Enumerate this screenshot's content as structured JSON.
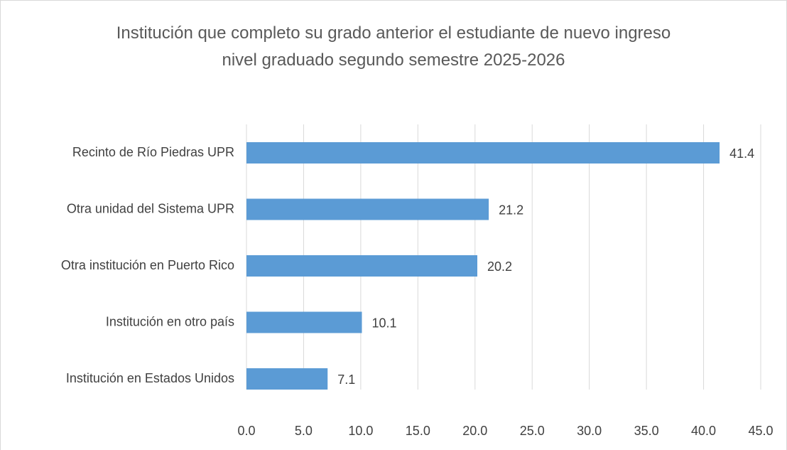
{
  "chart_data": {
    "type": "bar",
    "orientation": "horizontal",
    "title": "Institución que completo su grado anterior el estudiante de nuevo ingreso nivel graduado segundo semestre 2025-2026",
    "categories": [
      "Recinto de Río Piedras UPR",
      "Otra unidad del Sistema UPR",
      "Otra institución en Puerto Rico",
      "Institución en otro país",
      "Institución en Estados Unidos"
    ],
    "values": [
      41.4,
      21.2,
      20.2,
      10.1,
      7.1
    ],
    "color": "#5b9bd5",
    "xlim": [
      0,
      45
    ],
    "xticks": [
      {
        "value": 0,
        "label": "0.0"
      },
      {
        "value": 5,
        "label": "5.0"
      },
      {
        "value": 10,
        "label": "10.0"
      },
      {
        "value": 15,
        "label": "15.0"
      },
      {
        "value": 20,
        "label": "20.0"
      },
      {
        "value": 25,
        "label": "25.0"
      },
      {
        "value": 30,
        "label": "30.0"
      },
      {
        "value": 35,
        "label": "35.0"
      },
      {
        "value": 40,
        "label": "40.0"
      },
      {
        "value": 45,
        "label": "45.0"
      }
    ],
    "grid": true
  }
}
